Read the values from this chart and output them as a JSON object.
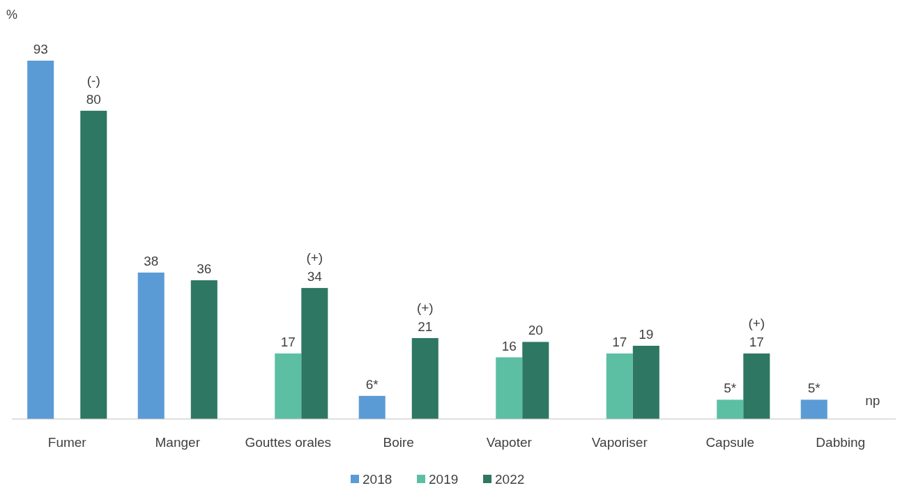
{
  "chart_data": {
    "type": "bar",
    "ylabel": "%",
    "categories": [
      "Fumer",
      "Manger",
      "Gouttes orales",
      "Boire",
      "Vapoter",
      "Vaporiser",
      "Capsule",
      "Dabbing"
    ],
    "series": [
      {
        "name": "2018",
        "color": "#5b9bd5",
        "values": [
          93,
          38,
          null,
          6,
          null,
          null,
          null,
          5
        ],
        "value_labels": [
          "93",
          "38",
          null,
          "6*",
          null,
          null,
          null,
          "5*"
        ]
      },
      {
        "name": "2019",
        "color": "#5cbfa4",
        "values": [
          null,
          null,
          17,
          null,
          16,
          17,
          5,
          null
        ],
        "value_labels": [
          null,
          null,
          "17",
          null,
          "16",
          "17",
          "5*",
          null
        ]
      },
      {
        "name": "2022",
        "color": "#2e7763",
        "values": [
          80,
          36,
          34,
          21,
          20,
          19,
          17,
          null
        ],
        "value_labels": [
          "(-)\n80",
          "36",
          "(+)\n34",
          "(+)\n21",
          "20",
          "19",
          "(+)\n17",
          "np"
        ]
      }
    ],
    "legend": "bottom"
  }
}
